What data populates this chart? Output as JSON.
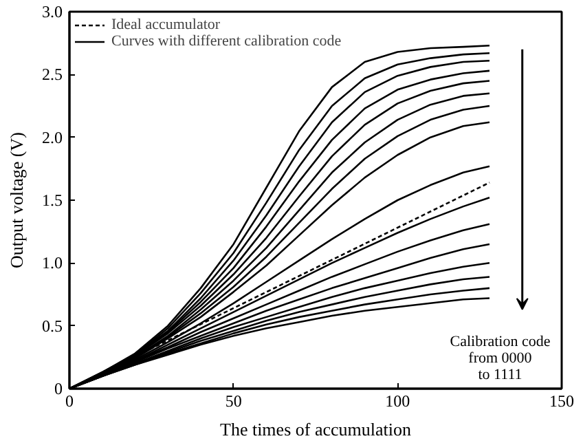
{
  "chart_data": {
    "type": "line",
    "xlabel": "The times of accumulation",
    "ylabel": "Output voltage (V)",
    "x": [
      0,
      10,
      20,
      30,
      40,
      50,
      60,
      70,
      80,
      90,
      100,
      110,
      120,
      128
    ],
    "xlim": [
      0,
      150
    ],
    "xticks": [
      0,
      50,
      100,
      150
    ],
    "ylim": [
      0,
      3.0
    ],
    "yticks": [
      0,
      {
        "value": 0.5,
        "label": "0.5"
      },
      {
        "value": 1.0,
        "label": "1.0"
      },
      {
        "value": 1.5,
        "label": "1.5"
      },
      {
        "value": 2.0,
        "label": "2.0"
      },
      {
        "value": 2.5,
        "label": "2.5"
      },
      {
        "value": 3.0,
        "label": "3.0"
      }
    ],
    "grid": false,
    "legend": "top left",
    "marker": "none",
    "annotations": [
      "Calibration code\nfrom 0000\nto 1111"
    ],
    "series": [
      {
        "name": "Ideal accumulator",
        "color": "#000000",
        "line_style": "dashed",
        "x": [
          0,
          128
        ],
        "values": [
          0,
          1.64
        ]
      },
      {
        "name": "Curves with different calibration code",
        "color": "#000000",
        "line_style": "solid",
        "values": [
          0,
          0.13,
          0.28,
          0.5,
          0.8,
          1.15,
          1.6,
          2.05,
          2.4,
          2.6,
          2.68,
          2.71,
          2.72,
          2.73
        ]
      },
      {
        "color": "#000000",
        "line_style": "solid",
        "values": [
          0,
          0.13,
          0.27,
          0.48,
          0.76,
          1.08,
          1.48,
          1.9,
          2.25,
          2.47,
          2.58,
          2.63,
          2.66,
          2.67
        ]
      },
      {
        "color": "#000000",
        "line_style": "solid",
        "values": [
          0,
          0.13,
          0.27,
          0.46,
          0.72,
          1.02,
          1.38,
          1.77,
          2.12,
          2.36,
          2.49,
          2.56,
          2.6,
          2.61
        ]
      },
      {
        "color": "#000000",
        "line_style": "solid",
        "values": [
          0,
          0.12,
          0.26,
          0.45,
          0.69,
          0.96,
          1.29,
          1.65,
          1.98,
          2.23,
          2.38,
          2.46,
          2.51,
          2.53
        ]
      },
      {
        "color": "#000000",
        "line_style": "solid",
        "values": [
          0,
          0.12,
          0.26,
          0.44,
          0.66,
          0.91,
          1.2,
          1.53,
          1.85,
          2.1,
          2.27,
          2.37,
          2.43,
          2.45
        ]
      },
      {
        "color": "#000000",
        "line_style": "solid",
        "values": [
          0,
          0.12,
          0.25,
          0.42,
          0.63,
          0.86,
          1.12,
          1.42,
          1.72,
          1.96,
          2.14,
          2.26,
          2.33,
          2.35
        ]
      },
      {
        "color": "#000000",
        "line_style": "solid",
        "values": [
          0,
          0.12,
          0.25,
          0.41,
          0.6,
          0.81,
          1.05,
          1.32,
          1.59,
          1.83,
          2.01,
          2.14,
          2.22,
          2.25
        ]
      },
      {
        "color": "#000000",
        "line_style": "solid",
        "values": [
          0,
          0.12,
          0.24,
          0.4,
          0.57,
          0.77,
          0.98,
          1.22,
          1.46,
          1.68,
          1.86,
          2.0,
          2.09,
          2.12
        ]
      },
      {
        "color": "#000000",
        "line_style": "solid",
        "values": [
          0,
          0.11,
          0.23,
          0.37,
          0.52,
          0.68,
          0.85,
          1.02,
          1.19,
          1.35,
          1.5,
          1.62,
          1.72,
          1.77
        ]
      },
      {
        "color": "#000000",
        "line_style": "solid",
        "values": [
          0,
          0.11,
          0.22,
          0.35,
          0.48,
          0.61,
          0.74,
          0.87,
          1.0,
          1.12,
          1.24,
          1.35,
          1.45,
          1.52
        ]
      },
      {
        "color": "#000000",
        "line_style": "solid",
        "values": [
          0,
          0.11,
          0.22,
          0.33,
          0.45,
          0.56,
          0.67,
          0.78,
          0.89,
          0.99,
          1.09,
          1.18,
          1.26,
          1.31
        ]
      },
      {
        "color": "#000000",
        "line_style": "solid",
        "values": [
          0,
          0.1,
          0.21,
          0.32,
          0.42,
          0.52,
          0.62,
          0.71,
          0.8,
          0.88,
          0.96,
          1.04,
          1.11,
          1.15
        ]
      },
      {
        "color": "#000000",
        "line_style": "solid",
        "values": [
          0,
          0.1,
          0.2,
          0.3,
          0.4,
          0.49,
          0.57,
          0.65,
          0.73,
          0.8,
          0.86,
          0.92,
          0.97,
          1.0
        ]
      },
      {
        "color": "#000000",
        "line_style": "solid",
        "values": [
          0,
          0.1,
          0.2,
          0.29,
          0.38,
          0.46,
          0.54,
          0.61,
          0.67,
          0.73,
          0.78,
          0.83,
          0.87,
          0.89
        ]
      },
      {
        "color": "#000000",
        "line_style": "solid",
        "values": [
          0,
          0.1,
          0.19,
          0.28,
          0.36,
          0.44,
          0.51,
          0.57,
          0.62,
          0.67,
          0.71,
          0.75,
          0.78,
          0.8
        ]
      },
      {
        "color": "#000000",
        "line_style": "solid",
        "values": [
          0,
          0.1,
          0.19,
          0.27,
          0.35,
          0.42,
          0.48,
          0.53,
          0.58,
          0.62,
          0.65,
          0.68,
          0.71,
          0.72
        ]
      }
    ]
  }
}
